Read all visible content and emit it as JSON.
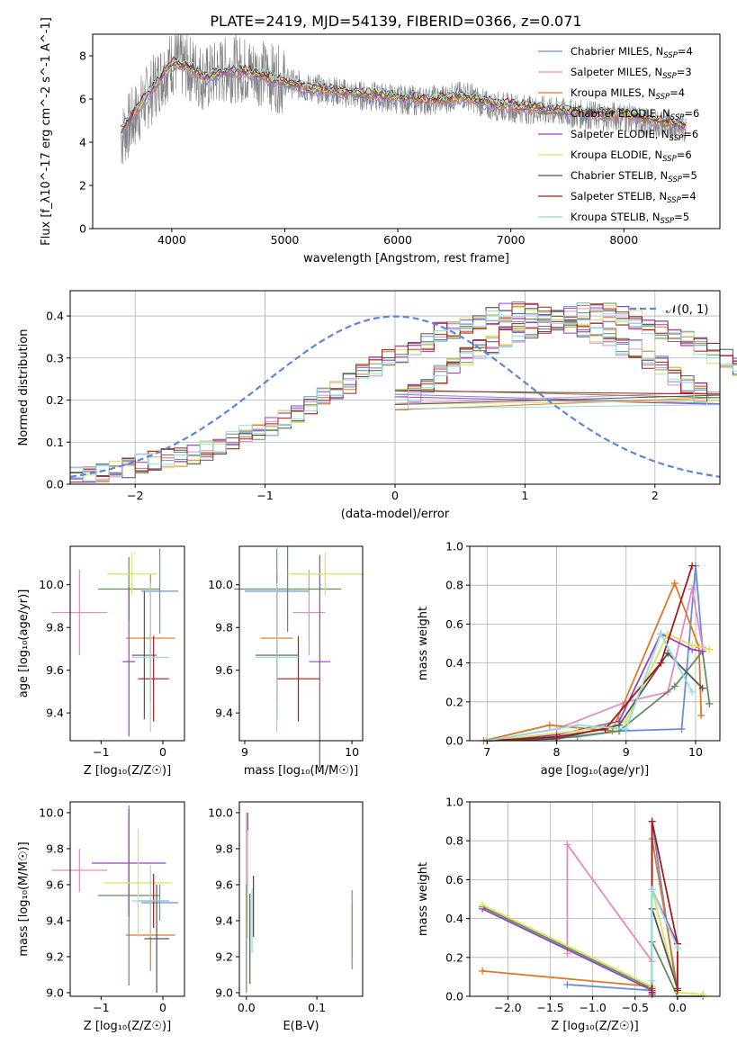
{
  "figure_title": "PLATE=2419, MJD=54139, FIBERID=0366, z=0.071",
  "colors": {
    "spec": "#808080",
    "grid": "#b0b0b0",
    "normal_line": "#5b87d6",
    "models": [
      "#6a8fd8",
      "#e58ac2",
      "#d97a27",
      "#5f8f5f",
      "#9b3fc2",
      "#d8e25a",
      "#555555",
      "#a31c1c",
      "#8fdde0"
    ]
  },
  "legend_top": [
    {
      "label": "Chabrier MILES, N",
      "sub": "SSP",
      "suffix": "=4"
    },
    {
      "label": "Salpeter MILES, N",
      "sub": "SSP",
      "suffix": "=3"
    },
    {
      "label": "Kroupa MILES, N",
      "sub": "SSP",
      "suffix": "=4"
    },
    {
      "label": "Chabrier ELODIE, N",
      "sub": "SSP",
      "suffix": "=6"
    },
    {
      "label": "Salpeter ELODIE, N",
      "sub": "SSP",
      "suffix": "=6"
    },
    {
      "label": "Kroupa ELODIE, N",
      "sub": "SSP",
      "suffix": "=6"
    },
    {
      "label": "Chabrier STELIB, N",
      "sub": "SSP",
      "suffix": "=5"
    },
    {
      "label": "Salpeter STELIB, N",
      "sub": "SSP",
      "suffix": "=4"
    },
    {
      "label": "Kroupa STELIB, N",
      "sub": "SSP",
      "suffix": "=5"
    }
  ],
  "chart_data": [
    {
      "id": "spectrum",
      "type": "line",
      "xlabel": "wavelength [Angstrom, rest frame]",
      "ylabel": "Flux [f_λ10^-17 erg cm^-2 s^-1 A^-1]",
      "xlim": [
        3300,
        8850
      ],
      "ylim": [
        0,
        9
      ],
      "xticks": [
        4000,
        5000,
        6000,
        7000,
        8000
      ],
      "yticks": [
        0,
        2,
        4,
        6,
        8
      ],
      "grid": false,
      "legend": "top-right",
      "data_x": [
        3550,
        3600,
        3700,
        3800,
        3900,
        4000,
        4100,
        4200,
        4300,
        4400,
        4500,
        4600,
        4700,
        4800,
        4900,
        5000,
        5200,
        5400,
        5600,
        5800,
        6000,
        6200,
        6400,
        6600,
        6800,
        7000,
        7200,
        7400,
        7600,
        7800,
        8000,
        8200,
        8400,
        8550
      ],
      "data_y": [
        4.2,
        4.6,
        5.4,
        6.2,
        7.0,
        7.7,
        7.6,
        7.3,
        6.9,
        7.2,
        7.4,
        7.4,
        7.3,
        7.2,
        7.0,
        6.8,
        6.5,
        6.4,
        6.2,
        6.1,
        6.0,
        5.9,
        6.0,
        6.2,
        5.7,
        5.6,
        5.5,
        5.4,
        5.3,
        5.2,
        5.2,
        4.9,
        4.8,
        4.6
      ],
      "model_y": [
        4.6,
        4.9,
        5.6,
        6.3,
        7.0,
        7.6,
        7.6,
        7.3,
        7.0,
        7.2,
        7.3,
        7.3,
        7.2,
        7.1,
        6.9,
        6.8,
        6.5,
        6.4,
        6.3,
        6.2,
        6.1,
        6.0,
        6.0,
        6.1,
        5.8,
        5.7,
        5.6,
        5.5,
        5.4,
        5.3,
        5.3,
        5.1,
        4.9,
        4.8
      ]
    },
    {
      "id": "residuals",
      "type": "histogram",
      "xlabel": "(data-model)/error",
      "ylabel": "Normed distribution",
      "xlim": [
        -2.5,
        2.5
      ],
      "ylim": [
        0,
        0.46
      ],
      "xticks": [
        -2,
        -1,
        0,
        1,
        2
      ],
      "yticks": [
        0.0,
        0.1,
        0.2,
        0.3,
        0.4
      ],
      "grid": true,
      "legend": "top-right",
      "legend_label": "𝒩(0, 1)",
      "bin_width": 0.1,
      "bin_start": -2.5,
      "base_values": [
        0.02,
        0.02,
        0.025,
        0.03,
        0.04,
        0.05,
        0.055,
        0.06,
        0.065,
        0.07,
        0.08,
        0.09,
        0.1,
        0.115,
        0.13,
        0.14,
        0.155,
        0.17,
        0.19,
        0.21,
        0.22,
        0.24,
        0.26,
        0.28,
        0.3,
        0.31,
        0.33,
        0.34,
        0.36,
        0.37,
        0.38,
        0.39,
        0.4,
        0.41,
        0.41,
        0.41,
        0.4,
        0.39,
        0.38,
        0.37,
        0.36,
        0.35,
        0.33,
        0.32,
        0.3,
        0.28,
        0.26,
        0.24,
        0.22,
        0.2
      ]
    },
    {
      "id": "age-vs-Z",
      "type": "errorbar",
      "xlabel": "Z [log₁₀(Z/Z☉)]",
      "ylabel": "age  [log₁₀(age/yr)]",
      "xlim": [
        -1.5,
        0.35
      ],
      "ylim": [
        9.27,
        10.18
      ],
      "xticks": [
        -1,
        0
      ],
      "yticks": [
        9.4,
        9.6,
        9.8,
        10.0
      ],
      "grid": false,
      "points": [
        {
          "x": -0.05,
          "y": 9.97,
          "xerr": 0.3,
          "yerr": 0.2
        },
        {
          "x": -1.35,
          "y": 9.87,
          "xerr": 0.45,
          "yerr": 0.2
        },
        {
          "x": -0.2,
          "y": 9.75,
          "xerr": 0.4,
          "yerr": 0.3
        },
        {
          "x": -0.55,
          "y": 9.98,
          "xerr": 0.5,
          "yerr": 0.15
        },
        {
          "x": -0.55,
          "y": 9.64,
          "xerr": 0.1,
          "yerr": 0.35
        },
        {
          "x": -0.5,
          "y": 10.05,
          "xerr": 0.4,
          "yerr": 0.1
        },
        {
          "x": -0.3,
          "y": 9.67,
          "xerr": 0.2,
          "yerr": 0.3
        },
        {
          "x": -0.15,
          "y": 9.56,
          "xerr": 0.25,
          "yerr": 0.2
        },
        {
          "x": -0.2,
          "y": 9.66,
          "xerr": 0.3,
          "yerr": 0.35
        }
      ]
    },
    {
      "id": "age-vs-mass",
      "type": "errorbar",
      "xlabel": "mass [log₁₀(M/M☉)]",
      "ylabel": "",
      "xlim": [
        8.95,
        10.1
      ],
      "ylim": [
        9.27,
        10.18
      ],
      "xticks": [
        9,
        10
      ],
      "yticks": [
        9.4,
        9.6,
        9.8,
        10.0
      ],
      "grid": false,
      "points": [
        {
          "x": 9.3,
          "y": 9.97,
          "xerr": 0.3,
          "yerr": 0.2
        },
        {
          "x": 9.6,
          "y": 9.87,
          "xerr": 0.15,
          "yerr": 0.2
        },
        {
          "x": 9.3,
          "y": 9.75,
          "xerr": 0.15,
          "yerr": 0.3
        },
        {
          "x": 9.4,
          "y": 9.98,
          "xerr": 0.5,
          "yerr": 0.2
        },
        {
          "x": 9.7,
          "y": 9.64,
          "xerr": 0.1,
          "yerr": 0.5
        },
        {
          "x": 9.75,
          "y": 10.05,
          "xerr": 0.35,
          "yerr": 0.1
        },
        {
          "x": 9.3,
          "y": 9.67,
          "xerr": 0.2,
          "yerr": 0.3
        },
        {
          "x": 9.5,
          "y": 9.56,
          "xerr": 0.2,
          "yerr": 0.2
        },
        {
          "x": 9.3,
          "y": 9.66,
          "xerr": 0.2,
          "yerr": 0.35
        }
      ]
    },
    {
      "id": "weight-vs-age",
      "type": "line",
      "xlabel": "age  [log₁₀(age/yr)]",
      "ylabel": "mass weight",
      "xlim": [
        6.75,
        10.35
      ],
      "ylim": [
        0.0,
        1.0
      ],
      "xticks": [
        7,
        8,
        9,
        10
      ],
      "yticks": [
        0.0,
        0.2,
        0.4,
        0.6,
        0.8,
        1.0
      ],
      "grid": true,
      "series": [
        {
          "x": [
            7.0,
            8.3,
            8.9,
            9.8,
            10.0,
            10.1
          ],
          "y": [
            0.0,
            0.02,
            0.05,
            0.06,
            0.9,
            0.48
          ]
        },
        {
          "x": [
            7.0,
            8.0,
            9.0,
            9.6,
            9.95,
            10.1
          ],
          "y": [
            0.0,
            0.06,
            0.2,
            0.25,
            0.78,
            0.48
          ]
        },
        {
          "x": [
            6.95,
            7.9,
            8.8,
            9.7,
            10.05,
            10.08
          ],
          "y": [
            0.0,
            0.08,
            0.05,
            0.81,
            0.48,
            0.13
          ]
        },
        {
          "x": [
            7.0,
            8.0,
            8.9,
            9.7,
            10.1,
            10.2
          ],
          "y": [
            0.0,
            0.01,
            0.05,
            0.28,
            0.46,
            0.19
          ]
        },
        {
          "x": [
            7.0,
            8.0,
            8.9,
            9.5,
            9.95,
            10.1
          ],
          "y": [
            0.0,
            0.03,
            0.1,
            0.55,
            0.47,
            0.46
          ]
        },
        {
          "x": [
            7.0,
            8.3,
            9.0,
            9.6,
            9.95,
            10.2
          ],
          "y": [
            0.0,
            0.05,
            0.1,
            0.55,
            0.49,
            0.47
          ]
        },
        {
          "x": [
            7.0,
            8.0,
            8.9,
            9.6,
            10.1
          ],
          "y": [
            0.0,
            0.01,
            0.08,
            0.45,
            0.27
          ]
        },
        {
          "x": [
            7.0,
            8.0,
            8.7,
            9.5,
            9.95
          ],
          "y": [
            0.0,
            0.02,
            0.06,
            0.4,
            0.9
          ]
        },
        {
          "x": [
            7.0,
            8.3,
            9.0,
            9.5,
            9.95
          ],
          "y": [
            0.0,
            0.08,
            0.06,
            0.55,
            0.25
          ]
        }
      ]
    },
    {
      "id": "mass-vs-Z",
      "type": "errorbar",
      "xlabel": "Z [log₁₀(Z/Z☉)]",
      "ylabel": "mass [log₁₀(M/M☉)]",
      "xlim": [
        -1.5,
        0.35
      ],
      "ylim": [
        8.98,
        10.06
      ],
      "xticks": [
        -1,
        0
      ],
      "yticks": [
        9.0,
        9.2,
        9.4,
        9.6,
        9.8,
        10.0
      ],
      "grid": false,
      "points": [
        {
          "x": -0.05,
          "y": 9.5,
          "xerr": 0.3,
          "yerr": 0.1
        },
        {
          "x": -1.35,
          "y": 9.68,
          "xerr": 0.45,
          "yerr": 0.12
        },
        {
          "x": -0.2,
          "y": 9.32,
          "xerr": 0.4,
          "yerr": 0.2
        },
        {
          "x": -0.55,
          "y": 9.54,
          "xerr": 0.5,
          "yerr": 0.5
        },
        {
          "x": -0.55,
          "y": 9.72,
          "xerr": 0.6,
          "yerr": 0.3
        },
        {
          "x": -0.4,
          "y": 9.61,
          "xerr": 0.55,
          "yerr": 0.3
        },
        {
          "x": -0.1,
          "y": 9.3,
          "xerr": 0.2,
          "yerr": 0.3
        },
        {
          "x": -0.15,
          "y": 9.51,
          "xerr": 0.25,
          "yerr": 0.15
        },
        {
          "x": -0.2,
          "y": 9.51,
          "xerr": 0.3,
          "yerr": 0.2
        }
      ]
    },
    {
      "id": "mass-vs-EBV",
      "type": "errorbar",
      "xlabel": "E(B-V)",
      "ylabel": "",
      "xlim": [
        -0.01,
        0.165
      ],
      "ylim": [
        8.98,
        10.06
      ],
      "xticks": [
        0.0,
        0.1
      ],
      "yticks": [
        9.0,
        9.2,
        9.4,
        9.6,
        9.8,
        10.0
      ],
      "grid": false,
      "points": [
        {
          "x": 0.15,
          "y": 9.35,
          "xerr": 0,
          "yerr": 0.22
        },
        {
          "x": 0.0,
          "y": 9.7,
          "xerr": 0,
          "yerr": 0.3
        },
        {
          "x": 0.15,
          "y": 9.35,
          "xerr": 0,
          "yerr": 0.15
        },
        {
          "x": 0.0,
          "y": 9.3,
          "xerr": 0,
          "yerr": 0.3
        },
        {
          "x": 0.002,
          "y": 9.8,
          "xerr": 0,
          "yerr": 0.2
        },
        {
          "x": 0.002,
          "y": 9.6,
          "xerr": 0,
          "yerr": 0.3
        },
        {
          "x": 0.005,
          "y": 9.3,
          "xerr": 0,
          "yerr": 0.25
        },
        {
          "x": 0.01,
          "y": 9.48,
          "xerr": 0,
          "yerr": 0.17
        },
        {
          "x": 0.008,
          "y": 9.4,
          "xerr": 0,
          "yerr": 0.18
        }
      ]
    },
    {
      "id": "weight-vs-Z",
      "type": "line",
      "xlabel": "Z [log₁₀(Z/Z☉)]",
      "ylabel": "mass weight",
      "xlim": [
        -2.45,
        0.5
      ],
      "ylim": [
        0.0,
        1.0
      ],
      "xticks": [
        -2.0,
        -1.5,
        -1.0,
        -0.5,
        0.0
      ],
      "yticks": [
        0.0,
        0.2,
        0.4,
        0.6,
        0.8,
        1.0
      ],
      "grid": true,
      "series": [
        {
          "x": [
            -1.3,
            -0.3,
            -0.3,
            0.0
          ],
          "y": [
            0.06,
            0.03,
            0.9,
            0.0
          ]
        },
        {
          "x": [
            -1.3,
            -1.3,
            -0.3,
            -0.3
          ],
          "y": [
            0.22,
            0.78,
            0.18,
            0.02
          ]
        },
        {
          "x": [
            -2.3,
            -0.3,
            -0.3,
            0.0
          ],
          "y": [
            0.13,
            0.05,
            0.81,
            0.04
          ]
        },
        {
          "x": [
            -2.3,
            -0.3,
            -0.3,
            0.0,
            0.3
          ],
          "y": [
            0.46,
            0.04,
            0.28,
            0.0,
            0.0
          ]
        },
        {
          "x": [
            -2.3,
            -0.3,
            -0.3,
            0.0
          ],
          "y": [
            0.45,
            0.03,
            0.55,
            0.27
          ]
        },
        {
          "x": [
            -2.3,
            -0.3,
            -0.3,
            0.0,
            0.3
          ],
          "y": [
            0.47,
            0.05,
            0.55,
            0.02,
            0.01
          ]
        },
        {
          "x": [
            -0.3,
            -0.3,
            0.0
          ],
          "y": [
            0.01,
            0.45,
            0.04
          ]
        },
        {
          "x": [
            -0.3,
            -0.3,
            0.0,
            0.0
          ],
          "y": [
            0.02,
            0.9,
            0.27,
            0.03
          ]
        },
        {
          "x": [
            -0.3,
            -0.3,
            0.0
          ],
          "y": [
            0.08,
            0.55,
            0.25
          ]
        }
      ]
    }
  ]
}
